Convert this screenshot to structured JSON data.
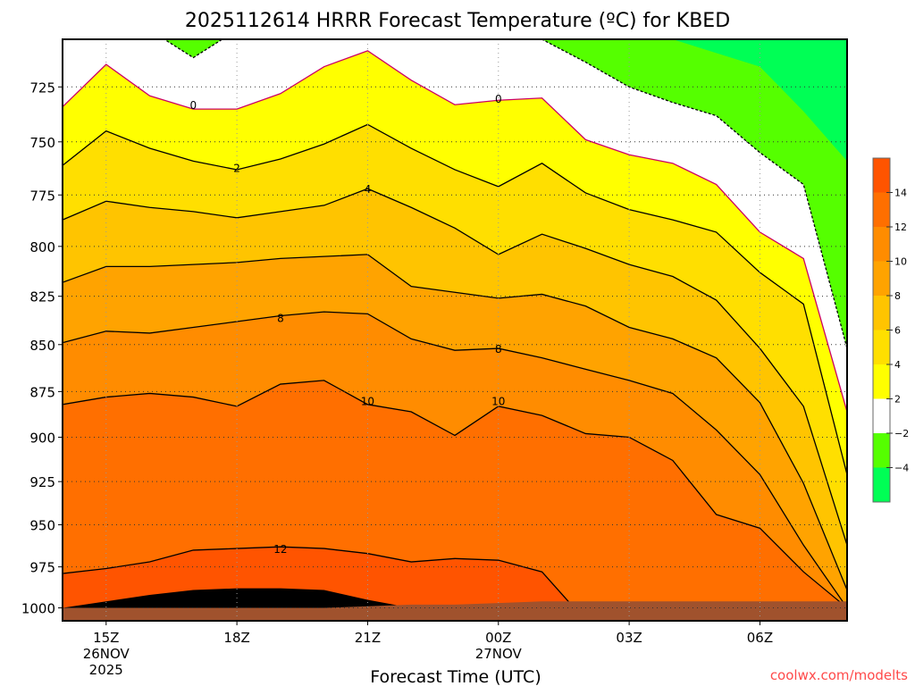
{
  "chart_data": {
    "type": "heatmap",
    "subtype": "time-pressure filled contour",
    "title": "2025112614 HRRR Forecast Temperature (ºC) for KBED",
    "xlabel": "Forecast Time (UTC)",
    "ylabel": "",
    "credit": "coolwx.com/modelts",
    "xlim_hours_from_14Z": [
      0,
      18
    ],
    "ylim_hPa": [
      704,
      1008
    ],
    "y_scale": "log",
    "y_ticks": [
      725,
      750,
      775,
      800,
      825,
      850,
      875,
      900,
      925,
      950,
      975,
      1000
    ],
    "x_ticks": [
      {
        "hour": 1,
        "label": "15Z",
        "sub1": "26NOV",
        "sub2": "2025"
      },
      {
        "hour": 4,
        "label": "18Z",
        "sub1": "",
        "sub2": ""
      },
      {
        "hour": 7,
        "label": "21Z",
        "sub1": "",
        "sub2": ""
      },
      {
        "hour": 10,
        "label": "00Z",
        "sub1": "27NOV",
        "sub2": ""
      },
      {
        "hour": 13,
        "label": "03Z",
        "sub1": "",
        "sub2": ""
      },
      {
        "hour": 16,
        "label": "06Z",
        "sub1": "",
        "sub2": ""
      }
    ],
    "hours": [
      0,
      1,
      2,
      3,
      4,
      5,
      6,
      7,
      8,
      9,
      10,
      11,
      12,
      13,
      14,
      15,
      16,
      17,
      18
    ],
    "isotherms_hPa": [
      {
        "temp": -4,
        "pressure": [
          700,
          700,
          700,
          700,
          700,
          700,
          700,
          700,
          700,
          700,
          700,
          700,
          700,
          700,
          704,
          710,
          716,
          736,
          759
        ]
      },
      {
        "temp": -2,
        "pressure": [
          700,
          700,
          700,
          712,
          700,
          700,
          700,
          700,
          700,
          700,
          700,
          704,
          714,
          725,
          732,
          738,
          755,
          770,
          852
        ]
      },
      {
        "temp": 0,
        "pressure": [
          734,
          715,
          729,
          735,
          735,
          728,
          716,
          709,
          722,
          733,
          731,
          730,
          749,
          756,
          760,
          770,
          793,
          806,
          886
        ]
      },
      {
        "temp": 2,
        "pressure": [
          761,
          745,
          753,
          759,
          763,
          758,
          751,
          742,
          753,
          763,
          771,
          760,
          774,
          782,
          787,
          793,
          813,
          829,
          921
        ]
      },
      {
        "temp": 4,
        "pressure": [
          787,
          778,
          781,
          783,
          786,
          783,
          780,
          772,
          781,
          791,
          804,
          794,
          801,
          809,
          815,
          827,
          852,
          883,
          962
        ]
      },
      {
        "temp": 6,
        "pressure": [
          818,
          810,
          810,
          809,
          808,
          806,
          805,
          804,
          820,
          823,
          826,
          824,
          830,
          841,
          847,
          857,
          881,
          926,
          989
        ]
      },
      {
        "temp": 8,
        "pressure": [
          849,
          843,
          844,
          841,
          838,
          835,
          833,
          834,
          847,
          853,
          852,
          857,
          863,
          869,
          876,
          896,
          921,
          962,
          1000
        ]
      },
      {
        "temp": 10,
        "pressure": [
          882,
          878,
          876,
          878,
          883,
          871,
          869,
          882,
          886,
          899,
          883,
          888,
          898,
          900,
          913,
          944,
          952,
          978,
          1000
        ]
      },
      {
        "temp": 12,
        "pressure": [
          979,
          976,
          972,
          965,
          964,
          963,
          964,
          967,
          972,
          970,
          971,
          978,
          1008,
          1008,
          1008,
          1008,
          1008,
          1008,
          1008
        ]
      },
      {
        "temp": 14,
        "pressure": [
          1000,
          996,
          992,
          989,
          988,
          988,
          989,
          995,
          1000,
          1008,
          1008,
          1008,
          1008,
          1008,
          1008,
          1008,
          1008,
          1008,
          1008
        ]
      }
    ],
    "surface_pressure_hPa": [
      1000,
      1000,
      1000,
      1000,
      1000,
      1000,
      1000,
      999,
      998,
      998,
      997,
      996,
      996,
      996,
      996,
      996,
      996,
      996,
      996
    ],
    "contour_labels": [
      {
        "text": "0",
        "hour": 3,
        "p": 733
      },
      {
        "text": "0",
        "hour": 10,
        "p": 730
      },
      {
        "text": "2",
        "hour": 4,
        "p": 762
      },
      {
        "text": "4",
        "hour": 7,
        "p": 772
      },
      {
        "text": "8",
        "hour": 5,
        "p": 836
      },
      {
        "text": "8",
        "hour": 10,
        "p": 852
      },
      {
        "text": "10",
        "hour": 7,
        "p": 880
      },
      {
        "text": "10",
        "hour": 10,
        "p": 880
      },
      {
        "text": "12",
        "hour": 5,
        "p": 964
      }
    ],
    "colorbar": {
      "levels": [
        "−4",
        "−2",
        "2",
        "4",
        "6",
        "8",
        "10",
        "12",
        "14"
      ],
      "colors": [
        "#00ff55",
        "#55ff00",
        "#ffffff",
        "#ffff00",
        "#ffdf00",
        "#ffc400",
        "#ffa300",
        "#ff8c00",
        "#ff6f00",
        "#ff5400"
      ]
    },
    "zero_line_color": "#cc0066",
    "ground_color": "#a0522d"
  }
}
